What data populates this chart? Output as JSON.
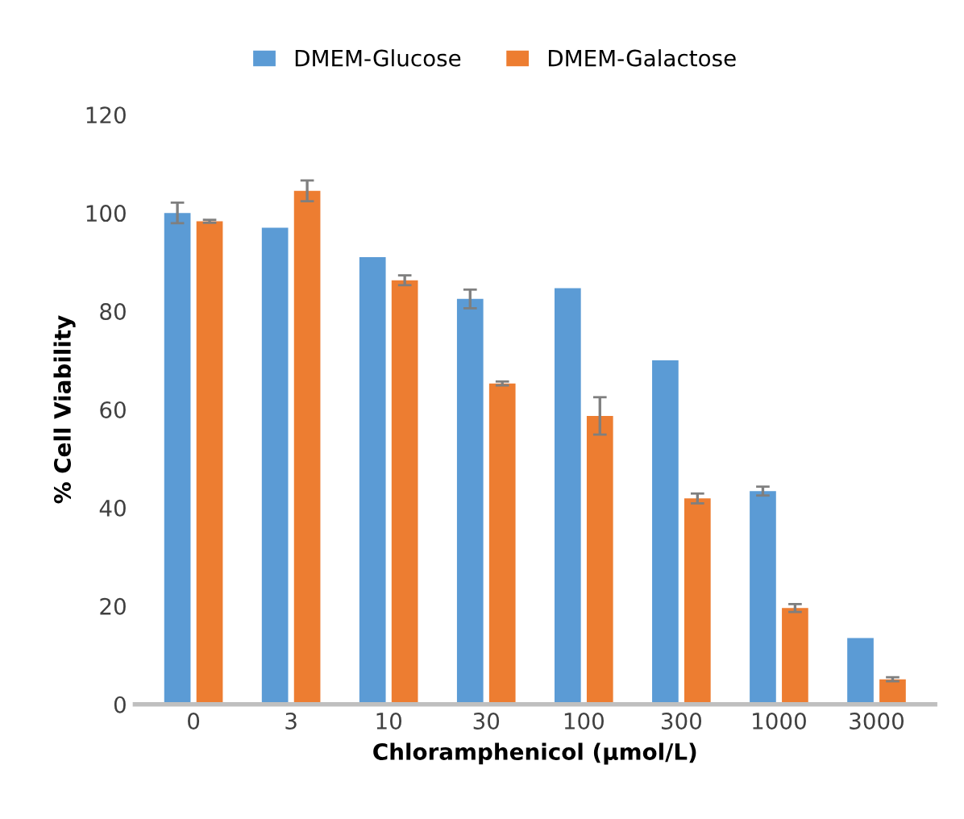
{
  "chart_data": {
    "type": "bar",
    "xlabel": "Chloramphenicol (µmol/L)",
    "ylabel": "% Cell Viability",
    "categories": [
      "0",
      "3",
      "10",
      "30",
      "100",
      "300",
      "1000",
      "3000"
    ],
    "series": [
      {
        "name": "DMEM-Glucose",
        "color": "#5b9bd5",
        "values": [
          100,
          97.0,
          91.0,
          82.5,
          84.7,
          70.0,
          43.4,
          13.5
        ],
        "errors": [
          2.1,
          null,
          null,
          1.9,
          null,
          null,
          0.9,
          null
        ]
      },
      {
        "name": "DMEM-Galactose",
        "color": "#ed7d31",
        "values": [
          98.3,
          104.5,
          86.3,
          65.3,
          58.7,
          41.9,
          19.6,
          5.1
        ],
        "errors": [
          0.3,
          2.1,
          1.0,
          0.4,
          3.8,
          1.0,
          0.8,
          0.4
        ]
      }
    ],
    "ylim": [
      0,
      120
    ],
    "yticks": [
      0,
      20,
      40,
      60,
      80,
      100,
      120
    ],
    "legend": "top",
    "grid": false
  }
}
